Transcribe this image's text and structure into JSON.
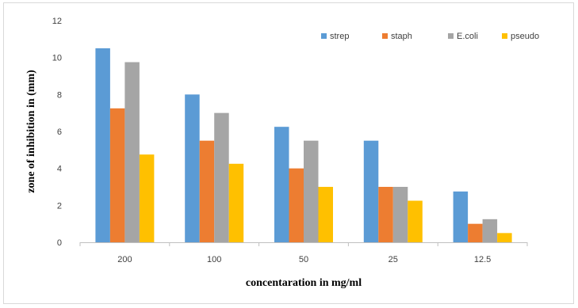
{
  "chart_data": {
    "type": "bar",
    "title": "",
    "xlabel": "concentaration in mg/ml",
    "ylabel": "zone of inhibition in (mm)",
    "categories": [
      "200",
      "100",
      "50",
      "25",
      "12.5"
    ],
    "ylim": [
      0,
      12
    ],
    "yticks": [
      "0",
      "2",
      "4",
      "6",
      "8",
      "10",
      "12"
    ],
    "grid": false,
    "legend_position": "top-right",
    "series": [
      {
        "name": "strep",
        "color": "#5b9bd5",
        "values": [
          10.5,
          8.0,
          6.25,
          5.5,
          2.75
        ]
      },
      {
        "name": "staph",
        "color": "#ed7d31",
        "values": [
          7.25,
          5.5,
          4.0,
          3.0,
          1.0
        ]
      },
      {
        "name": "E.coli",
        "color": "#a5a5a5",
        "values": [
          9.75,
          7.0,
          5.5,
          3.0,
          1.25
        ]
      },
      {
        "name": "pseudo",
        "color": "#ffc000",
        "values": [
          4.75,
          4.25,
          3.0,
          2.25,
          0.5
        ]
      }
    ]
  }
}
